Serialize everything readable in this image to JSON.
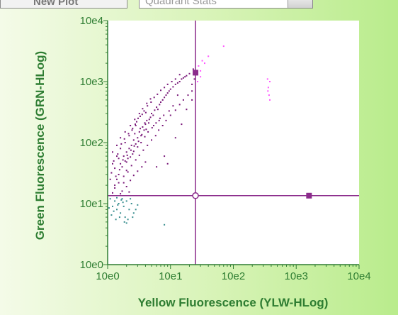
{
  "toolbar": {
    "left_button_label": "New Plot",
    "dropdown_value": "Quadrant Stats"
  },
  "chart_data": {
    "type": "scatter",
    "xlabel": "Yellow Fluorescence (YLW-HLog)",
    "ylabel": "Green Fluorescence (GRN-HLog)",
    "xscale": "log",
    "yscale": "log",
    "xlim": [
      1,
      10000
    ],
    "ylim": [
      1,
      10000
    ],
    "xticks": [
      "10e0",
      "10e1",
      "10e2",
      "10e3",
      "10e4"
    ],
    "yticks": [
      "10e0",
      "10e1",
      "10e2",
      "10e3",
      "10e4"
    ],
    "grid": false,
    "colors": {
      "main_population": "#7a1a7a",
      "upper_right": "#ff55ff",
      "lower_left": "#3a8f90",
      "gate_line": "#8b2b8b",
      "axis": "#2e7d32",
      "plot_background": "#ffffff"
    },
    "quadrant_gate": {
      "x": 25,
      "y": 13.5
    },
    "gate_handles": [
      {
        "x": 25,
        "y": 1400
      },
      {
        "x": 1600,
        "y": 13.5
      }
    ],
    "series": [
      {
        "color": "main_population",
        "points": [
          [
            1.2,
            15
          ],
          [
            1.3,
            20
          ],
          [
            1.4,
            25
          ],
          [
            1.3,
            38
          ],
          [
            1.5,
            30
          ],
          [
            1.6,
            45
          ],
          [
            1.5,
            55
          ],
          [
            1.7,
            40
          ],
          [
            1.8,
            60
          ],
          [
            1.9,
            50
          ],
          [
            2.0,
            70
          ],
          [
            2.1,
            55
          ],
          [
            2.2,
            80
          ],
          [
            2.0,
            35
          ],
          [
            2.4,
            90
          ],
          [
            2.5,
            65
          ],
          [
            2.6,
            110
          ],
          [
            2.8,
            95
          ],
          [
            3.0,
            120
          ],
          [
            2.7,
            140
          ],
          [
            3.2,
            150
          ],
          [
            3.4,
            130
          ],
          [
            3.6,
            180
          ],
          [
            3.8,
            160
          ],
          [
            4.0,
            200
          ],
          [
            4.2,
            230
          ],
          [
            4.5,
            210
          ],
          [
            4.8,
            260
          ],
          [
            5.0,
            300
          ],
          [
            5.3,
            280
          ],
          [
            5.6,
            340
          ],
          [
            6.0,
            380
          ],
          [
            6.3,
            350
          ],
          [
            6.7,
            420
          ],
          [
            7.0,
            460
          ],
          [
            7.5,
            500
          ],
          [
            8.0,
            550
          ],
          [
            8.5,
            600
          ],
          [
            9.0,
            650
          ],
          [
            9.5,
            700
          ],
          [
            10,
            750
          ],
          [
            11,
            820
          ],
          [
            12,
            900
          ],
          [
            13,
            950
          ],
          [
            14,
            1000
          ],
          [
            15,
            1100
          ],
          [
            16,
            1150
          ],
          [
            17,
            1200
          ],
          [
            18,
            1250
          ],
          [
            20,
            1350
          ],
          [
            1.1,
            25
          ],
          [
            1.2,
            45
          ],
          [
            1.4,
            60
          ],
          [
            1.6,
            80
          ],
          [
            1.9,
            100
          ],
          [
            2.2,
            130
          ],
          [
            2.5,
            170
          ],
          [
            2.9,
            220
          ],
          [
            3.3,
            270
          ],
          [
            3.8,
            330
          ],
          [
            4.3,
            400
          ],
          [
            4.9,
            460
          ],
          [
            5.5,
            550
          ],
          [
            6.2,
            620
          ],
          [
            7.0,
            720
          ],
          [
            8.0,
            800
          ],
          [
            9.0,
            900
          ],
          [
            10.5,
            1000
          ],
          [
            12,
            1100
          ],
          [
            14,
            1300
          ],
          [
            1.3,
            18
          ],
          [
            1.5,
            22
          ],
          [
            1.8,
            28
          ],
          [
            2.1,
            33
          ],
          [
            2.4,
            42
          ],
          [
            2.8,
            52
          ],
          [
            3.2,
            62
          ],
          [
            3.7,
            75
          ],
          [
            4.3,
            90
          ],
          [
            5.0,
            110
          ],
          [
            5.8,
            130
          ],
          [
            6.5,
            160
          ],
          [
            7.5,
            190
          ],
          [
            8.5,
            230
          ],
          [
            10,
            280
          ],
          [
            12,
            340
          ],
          [
            14,
            420
          ],
          [
            16,
            500
          ],
          [
            19,
            600
          ],
          [
            22,
            700
          ],
          [
            1.2,
            70
          ],
          [
            1.4,
            90
          ],
          [
            1.6,
            120
          ],
          [
            1.9,
            150
          ],
          [
            2.3,
            190
          ],
          [
            2.7,
            240
          ],
          [
            3.2,
            300
          ],
          [
            3.6,
            360
          ],
          [
            4.2,
            440
          ],
          [
            4.8,
            520
          ],
          [
            2.0,
            48
          ],
          [
            2.3,
            58
          ],
          [
            2.6,
            72
          ],
          [
            3.0,
            85
          ],
          [
            3.4,
            100
          ],
          [
            3.9,
            125
          ],
          [
            4.4,
            150
          ],
          [
            5.1,
            175
          ],
          [
            5.9,
            210
          ],
          [
            6.8,
            250
          ],
          [
            1.15,
            32
          ],
          [
            1.35,
            28
          ],
          [
            1.55,
            36
          ],
          [
            1.75,
            52
          ],
          [
            2.05,
            62
          ],
          [
            2.35,
            75
          ],
          [
            2.65,
            88
          ],
          [
            3.1,
            105
          ],
          [
            3.5,
            135
          ],
          [
            4.1,
            165
          ],
          [
            1.7,
            16
          ],
          [
            2.0,
            19
          ],
          [
            2.3,
            24
          ],
          [
            2.6,
            29
          ],
          [
            3.0,
            34
          ],
          [
            3.5,
            40
          ],
          [
            4.0,
            48
          ],
          [
            1.8,
            22
          ],
          [
            1.6,
            14.5
          ],
          [
            2.2,
            15.5
          ],
          [
            6.0,
            40
          ],
          [
            8,
            60
          ],
          [
            9,
            45
          ],
          [
            12,
            120
          ],
          [
            15,
            200
          ],
          [
            18,
            350
          ],
          [
            22,
            500
          ],
          [
            22,
            900
          ],
          [
            24,
            1100
          ],
          [
            23,
            1600
          ],
          [
            13,
            600
          ],
          [
            11,
            400
          ],
          [
            9.5,
            330
          ],
          [
            7.8,
            280
          ],
          [
            6.6,
            230
          ],
          [
            5.4,
            190
          ],
          [
            4.6,
            240
          ],
          [
            3.9,
            210
          ],
          [
            3.3,
            170
          ],
          [
            2.8,
            190
          ],
          [
            1.25,
            50
          ],
          [
            1.45,
            65
          ],
          [
            1.65,
            95
          ],
          [
            1.85,
            115
          ],
          [
            2.15,
            140
          ],
          [
            2.45,
            160
          ],
          [
            2.75,
            200
          ],
          [
            3.05,
            250
          ],
          [
            3.55,
            290
          ],
          [
            4.05,
            310
          ]
        ]
      },
      {
        "color": "upper_right",
        "points": [
          [
            28,
            1800
          ],
          [
            32,
            2200
          ],
          [
            30,
            1500
          ],
          [
            35,
            2000
          ],
          [
            40,
            2600
          ],
          [
            70,
            3800
          ],
          [
            30,
            1200
          ],
          [
            27,
            1000
          ],
          [
            350,
            1100
          ],
          [
            380,
            1000
          ],
          [
            360,
            800
          ],
          [
            370,
            600
          ],
          [
            380,
            500
          ],
          [
            355,
            700
          ]
        ]
      },
      {
        "color": "lower_left",
        "points": [
          [
            1.1,
            12
          ],
          [
            1.2,
            9
          ],
          [
            1.3,
            11
          ],
          [
            1.4,
            8
          ],
          [
            1.5,
            10
          ],
          [
            1.6,
            7
          ],
          [
            1.7,
            12
          ],
          [
            1.8,
            9
          ],
          [
            1.9,
            6
          ],
          [
            2.0,
            11
          ],
          [
            2.2,
            8
          ],
          [
            2.4,
            10
          ],
          [
            2.6,
            7
          ],
          [
            1.15,
            6.5
          ],
          [
            1.35,
            5.5
          ],
          [
            1.55,
            6
          ],
          [
            1.85,
            5
          ],
          [
            2.1,
            5.5
          ],
          [
            2.5,
            6
          ],
          [
            2.8,
            8
          ],
          [
            1.25,
            7.5
          ],
          [
            1.45,
            9.5
          ],
          [
            1.65,
            11.5
          ],
          [
            2.3,
            12
          ],
          [
            8.0,
            4.5
          ],
          [
            1.05,
            8.5
          ],
          [
            1.75,
            10.5
          ],
          [
            3.0,
            9.5
          ],
          [
            2.0,
            4.8
          ],
          [
            1.4,
            12.5
          ]
        ]
      }
    ]
  }
}
